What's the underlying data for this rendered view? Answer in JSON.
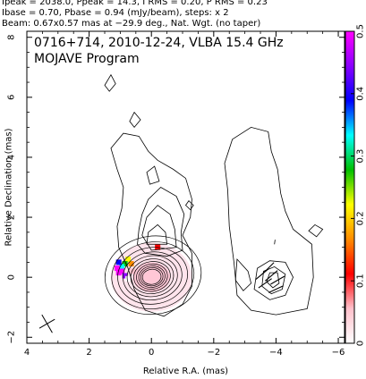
{
  "header": {
    "line1": "Ipeak = 2038.0, Ppeak = 14.3, I RMS = 0.20, P RMS = 0.23",
    "line2": "Ibase = 0.70, Pbase = 0.94 (mJy/beam), steps: x 2",
    "line3": "Beam: 0.67x0.57 mas at −29.9 deg., Nat. Wgt. (no taper)"
  },
  "chart_data": {
    "type": "contour",
    "title": "0716+714, 2010-12-24, VLBA 15.4 GHz",
    "subtitle": "MOJAVE Program",
    "xlabel": "Relative R.A. (mas)",
    "ylabel": "Relative Declination (mas)",
    "xlim": [
      4,
      -6.2
    ],
    "ylim": [
      -2.2,
      8.2
    ],
    "x_ticks": [
      {
        "value": 4,
        "label": "4"
      },
      {
        "value": 2,
        "label": "2"
      },
      {
        "value": 0,
        "label": "0"
      },
      {
        "value": -2,
        "label": "−2"
      },
      {
        "value": -4,
        "label": "−4"
      },
      {
        "value": -6,
        "label": "−6"
      }
    ],
    "y_ticks": [
      {
        "value": -2,
        "label": "−2"
      },
      {
        "value": 0,
        "label": "0"
      },
      {
        "value": 2,
        "label": "2"
      },
      {
        "value": 4,
        "label": "4"
      },
      {
        "value": 6,
        "label": "6"
      },
      {
        "value": 8,
        "label": "8"
      }
    ],
    "colorbar": {
      "range": [
        0,
        0.5
      ],
      "ticks": [
        {
          "value": 0,
          "label": "0"
        },
        {
          "value": 0.1,
          "label": "0.1"
        },
        {
          "value": 0.2,
          "label": "0.2"
        },
        {
          "value": 0.3,
          "label": "0.3"
        },
        {
          "value": 0.4,
          "label": "0.4"
        },
        {
          "value": 0.5,
          "label": "0.5"
        }
      ],
      "colors": [
        "#ffffff",
        "#ffc0cb",
        "#ff0000",
        "#ff8c00",
        "#ffff00",
        "#00c000",
        "#00ffff",
        "#0000ff",
        "#8b00ff",
        "#ff00ff"
      ]
    },
    "total_intensity_map": {
      "core": {
        "x": 0,
        "y": 0
      },
      "contour_scale": [
        0.6,
        0.72,
        0.85,
        1.0,
        1.18,
        1.38,
        1.62,
        1.9,
        2.25,
        2.65,
        3.1
      ],
      "jet_outline": [
        [
          -1.3,
          -0.3
        ],
        [
          -1.3,
          0.8
        ],
        [
          -1.0,
          1.4
        ],
        [
          -1.25,
          2.0
        ],
        [
          -1.3,
          2.6
        ],
        [
          -1.1,
          3.3
        ],
        [
          -0.7,
          3.6
        ],
        [
          -0.2,
          3.9
        ],
        [
          0.1,
          4.2
        ],
        [
          0.4,
          4.7
        ],
        [
          0.9,
          4.8
        ],
        [
          1.3,
          4.3
        ],
        [
          1.1,
          3.6
        ],
        [
          0.9,
          3.0
        ],
        [
          0.95,
          2.3
        ],
        [
          1.1,
          1.7
        ],
        [
          1.05,
          1.0
        ],
        [
          0.75,
          0.3
        ],
        [
          0.55,
          -0.4
        ],
        [
          0.2,
          -1.1
        ],
        [
          -0.4,
          -1.3
        ],
        [
          -1.0,
          -0.9
        ]
      ],
      "jet_inner_contours": [
        [
          [
            -1.0,
            0.9
          ],
          [
            -0.95,
            1.5
          ],
          [
            -1.05,
            2.1
          ],
          [
            -0.8,
            2.7
          ],
          [
            -0.3,
            3.0
          ],
          [
            0.1,
            2.6
          ],
          [
            0.3,
            2.1
          ],
          [
            0.4,
            1.6
          ],
          [
            0.45,
            1.1
          ],
          [
            0.2,
            0.8
          ],
          [
            -0.5,
            0.7
          ]
        ],
        [
          [
            -0.8,
            1.0
          ],
          [
            -0.75,
            1.6
          ],
          [
            -0.6,
            2.1
          ],
          [
            -0.2,
            2.4
          ],
          [
            0.15,
            2.0
          ],
          [
            0.3,
            1.4
          ],
          [
            0.0,
            0.9
          ]
        ],
        [
          [
            -0.5,
            1.1
          ],
          [
            -0.45,
            1.5
          ],
          [
            -0.2,
            1.75
          ],
          [
            0.1,
            1.5
          ],
          [
            0.15,
            1.1
          ]
        ],
        [
          [
            -0.25,
            3.2
          ],
          [
            -0.1,
            3.7
          ],
          [
            0.15,
            3.5
          ],
          [
            0.05,
            3.1
          ]
        ]
      ],
      "islands": [
        [
          [
            1.35,
            6.2
          ],
          [
            1.15,
            6.45
          ],
          [
            1.3,
            6.75
          ],
          [
            1.5,
            6.4
          ]
        ],
        [
          [
            0.55,
            5.0
          ],
          [
            0.35,
            5.25
          ],
          [
            0.55,
            5.5
          ],
          [
            0.7,
            5.2
          ]
        ],
        [
          [
            -1.25,
            2.25
          ],
          [
            -1.35,
            2.4
          ],
          [
            -1.2,
            2.55
          ],
          [
            -1.1,
            2.4
          ]
        ]
      ]
    },
    "polarization_map": {
      "offset_x": -4.5,
      "outline": [
        [
          -2.6,
          4.6
        ],
        [
          -3.2,
          5.0
        ],
        [
          -3.75,
          4.85
        ],
        [
          -3.85,
          4.2
        ],
        [
          -4.05,
          3.6
        ],
        [
          -4.15,
          2.8
        ],
        [
          -4.3,
          2.2
        ],
        [
          -4.55,
          1.6
        ],
        [
          -5.15,
          1.1
        ],
        [
          -5.2,
          0.0
        ],
        [
          -5.0,
          -1.05
        ],
        [
          -4.0,
          -1.25
        ],
        [
          -3.2,
          -1.1
        ],
        [
          -2.75,
          -0.6
        ],
        [
          -2.65,
          0.5
        ],
        [
          -2.5,
          1.7
        ],
        [
          -2.45,
          2.9
        ],
        [
          -2.35,
          3.8
        ]
      ],
      "inner_contours": [
        [
          [
            -3.3,
            -0.4
          ],
          [
            -3.4,
            0.3
          ],
          [
            -3.8,
            0.55
          ],
          [
            -4.3,
            0.5
          ],
          [
            -4.55,
            0.0
          ],
          [
            -4.3,
            -0.6
          ],
          [
            -3.8,
            -0.75
          ]
        ],
        [
          [
            -3.55,
            -0.3
          ],
          [
            -3.6,
            0.2
          ],
          [
            -3.95,
            0.35
          ],
          [
            -4.3,
            0.1
          ],
          [
            -4.2,
            -0.4
          ],
          [
            -3.85,
            -0.55
          ]
        ],
        [
          [
            -3.7,
            -0.15
          ],
          [
            -3.8,
            0.15
          ],
          [
            -4.05,
            0.15
          ],
          [
            -4.1,
            -0.2
          ],
          [
            -3.9,
            -0.35
          ]
        ]
      ],
      "islands": [
        [
          [
            -2.75,
            0.6
          ],
          [
            -3.1,
            0.2
          ],
          [
            -3.2,
            -0.2
          ],
          [
            -2.95,
            -0.45
          ],
          [
            -2.7,
            -0.1
          ]
        ],
        [
          [
            -5.3,
            1.35
          ],
          [
            -5.05,
            1.55
          ],
          [
            -5.25,
            1.75
          ],
          [
            -5.5,
            1.6
          ]
        ],
        [
          [
            -3.95,
            1.1
          ],
          [
            -3.97,
            1.25
          ]
        ]
      ]
    },
    "polarization_pixels": [
      {
        "x": -0.2,
        "y": 1.0,
        "v": 0.12
      },
      {
        "x": 0.65,
        "y": 0.45,
        "v": 0.18
      },
      {
        "x": 0.75,
        "y": 0.6,
        "v": 0.23
      },
      {
        "x": 0.85,
        "y": 0.45,
        "v": 0.3
      },
      {
        "x": 0.95,
        "y": 0.35,
        "v": 0.35
      },
      {
        "x": 1.05,
        "y": 0.5,
        "v": 0.4
      },
      {
        "x": 1.1,
        "y": 0.3,
        "v": 0.5
      },
      {
        "x": 1.05,
        "y": 0.15,
        "v": 0.5
      },
      {
        "x": 0.95,
        "y": 0.2,
        "v": 0.5
      },
      {
        "x": 0.85,
        "y": 0.05,
        "v": 0.45
      },
      {
        "x": 0.75,
        "y": -0.05,
        "v": 0.02
      },
      {
        "x": 0.6,
        "y": 0.2,
        "v": 0.05
      }
    ],
    "beam": {
      "major": 0.67,
      "minor": 0.57,
      "pa_deg": -29.9
    }
  }
}
